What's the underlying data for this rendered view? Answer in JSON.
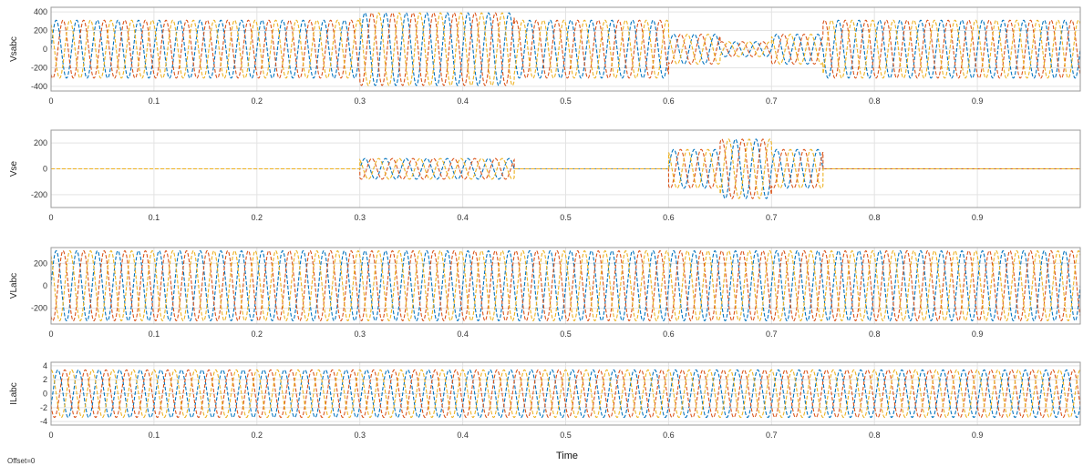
{
  "chart_data": {
    "type": "line",
    "xlabel": "Time",
    "footer": "Offset=0",
    "xlim": [
      0,
      1
    ],
    "x_ticks": [
      0,
      0.1,
      0.2,
      0.3,
      0.4,
      0.5,
      0.6,
      0.7,
      0.8,
      0.9
    ],
    "x_tick_labels": [
      "0",
      "0.1",
      "0.2",
      "0.3",
      "0.4",
      "0.5",
      "0.6",
      "0.7",
      "0.8",
      "0.9"
    ],
    "grid": true,
    "colors": {
      "a": "#0072bd",
      "b": "#d95319",
      "c": "#edb120"
    },
    "frequency_hz": 50,
    "panels": [
      {
        "name": "Vsabc",
        "ylabel": "Vsabc",
        "ylim": [
          -450,
          450
        ],
        "y_ticks": [
          400,
          200,
          0,
          -200,
          -400
        ],
        "y_tick_labels": [
          "400",
          "200",
          "0",
          "-200",
          "-400"
        ],
        "series": [
          {
            "phase_shift_deg": 0
          },
          {
            "phase_shift_deg": -120
          },
          {
            "phase_shift_deg": 120
          }
        ],
        "segments": [
          {
            "t0": 0,
            "t1": 0.3,
            "amplitude": 311
          },
          {
            "t0": 0.3,
            "t1": 0.45,
            "amplitude": 390
          },
          {
            "t0": 0.45,
            "t1": 0.6,
            "amplitude": 311
          },
          {
            "t0": 0.6,
            "t1": 0.65,
            "amplitude": 160
          },
          {
            "t0": 0.65,
            "t1": 0.7,
            "amplitude": 80
          },
          {
            "t0": 0.7,
            "t1": 0.75,
            "amplitude": 160
          },
          {
            "t0": 0.75,
            "t1": 1.0,
            "amplitude": 311
          }
        ]
      },
      {
        "name": "Vse",
        "ylabel": "Vse",
        "ylim": [
          -300,
          300
        ],
        "y_ticks": [
          200,
          0,
          -200
        ],
        "y_tick_labels": [
          "200",
          "0",
          "-200"
        ],
        "series": [
          {
            "phase_shift_deg": 0
          },
          {
            "phase_shift_deg": -120
          },
          {
            "phase_shift_deg": 120
          }
        ],
        "segments": [
          {
            "t0": 0,
            "t1": 0.3,
            "amplitude": 0
          },
          {
            "t0": 0.3,
            "t1": 0.45,
            "amplitude": 80
          },
          {
            "t0": 0.45,
            "t1": 0.6,
            "amplitude": 0
          },
          {
            "t0": 0.6,
            "t1": 0.65,
            "amplitude": 150
          },
          {
            "t0": 0.65,
            "t1": 0.7,
            "amplitude": 230
          },
          {
            "t0": 0.7,
            "t1": 0.75,
            "amplitude": 150
          },
          {
            "t0": 0.75,
            "t1": 1.0,
            "amplitude": 0
          }
        ]
      },
      {
        "name": "VLabc",
        "ylabel": "VLabc",
        "ylim": [
          -340,
          340
        ],
        "y_ticks": [
          200,
          0,
          -200
        ],
        "y_tick_labels": [
          "200",
          "0",
          "-200"
        ],
        "series": [
          {
            "phase_shift_deg": 0
          },
          {
            "phase_shift_deg": -120
          },
          {
            "phase_shift_deg": 120
          }
        ],
        "segments": [
          {
            "t0": 0,
            "t1": 1.0,
            "amplitude": 311
          }
        ]
      },
      {
        "name": "ILabc",
        "ylabel": "ILabc",
        "ylim": [
          -4.5,
          4.5
        ],
        "y_ticks": [
          4,
          2,
          0,
          -2,
          -4
        ],
        "y_tick_labels": [
          "4",
          "2",
          "0",
          "-2",
          "-4"
        ],
        "series": [
          {
            "phase_shift_deg": -30
          },
          {
            "phase_shift_deg": -150
          },
          {
            "phase_shift_deg": 90
          }
        ],
        "segments": [
          {
            "t0": 0,
            "t1": 1.0,
            "amplitude": 3.4
          }
        ]
      }
    ]
  }
}
